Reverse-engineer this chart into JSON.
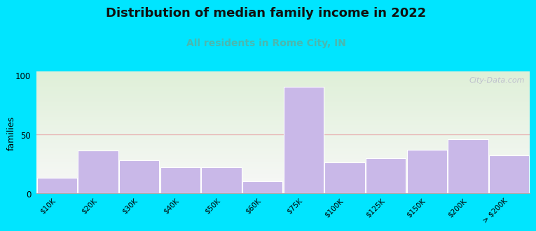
{
  "title": "Distribution of median family income in 2022",
  "subtitle": "All residents in Rome City, IN",
  "categories": [
    "$10K",
    "$20K",
    "$30K",
    "$40K",
    "$50K",
    "$60K",
    "$75K",
    "$100K",
    "$125K",
    "$150K",
    "$200K",
    "> $200K"
  ],
  "values": [
    13,
    36,
    28,
    22,
    22,
    10,
    90,
    26,
    30,
    37,
    46,
    32
  ],
  "bar_color": "#c9b8e8",
  "bar_edgecolor": "#ffffff",
  "background_outer": "#00e5ff",
  "background_plot_top": "#dff0d8",
  "background_plot_bottom": "#f8f8f8",
  "title_fontsize": 13,
  "subtitle_fontsize": 10,
  "subtitle_color": "#4ab8b0",
  "ylabel": "families",
  "ylabel_fontsize": 9,
  "yticks": [
    0,
    50,
    100
  ],
  "ylim": [
    0,
    103
  ],
  "grid_color": "#e8b0b0",
  "watermark": "City-Data.com",
  "watermark_color": "#bbbbcc",
  "tick_label_rotation": 45,
  "tick_label_fontsize": 7.5
}
